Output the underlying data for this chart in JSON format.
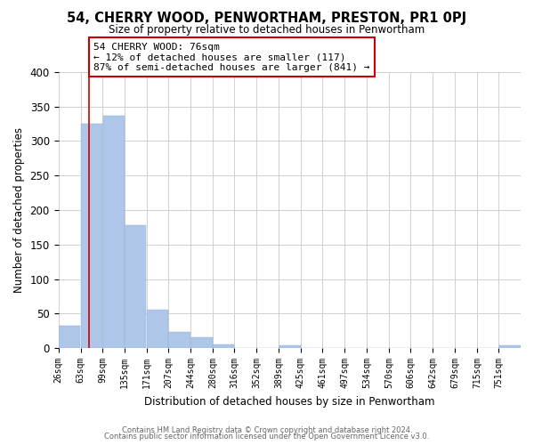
{
  "title": "54, CHERRY WOOD, PENWORTHAM, PRESTON, PR1 0PJ",
  "subtitle": "Size of property relative to detached houses in Penwortham",
  "xlabel": "Distribution of detached houses by size in Penwortham",
  "ylabel": "Number of detached properties",
  "bar_labels": [
    "26sqm",
    "63sqm",
    "99sqm",
    "135sqm",
    "171sqm",
    "207sqm",
    "244sqm",
    "280sqm",
    "316sqm",
    "352sqm",
    "389sqm",
    "425sqm",
    "461sqm",
    "497sqm",
    "534sqm",
    "570sqm",
    "606sqm",
    "642sqm",
    "679sqm",
    "715sqm",
    "751sqm"
  ],
  "bar_values": [
    33,
    325,
    337,
    178,
    56,
    24,
    16,
    6,
    0,
    0,
    4,
    0,
    0,
    0,
    0,
    0,
    0,
    0,
    0,
    0,
    4
  ],
  "bar_color": "#aec6e8",
  "property_line_x": 76,
  "bin_edges": [
    26,
    63,
    99,
    135,
    171,
    207,
    244,
    280,
    316,
    352,
    389,
    425,
    461,
    497,
    534,
    570,
    606,
    642,
    679,
    715,
    751,
    787
  ],
  "annotation_title": "54 CHERRY WOOD: 76sqm",
  "annotation_line1": "← 12% of detached houses are smaller (117)",
  "annotation_line2": "87% of semi-detached houses are larger (841) →",
  "vline_color": "#cc0000",
  "annotation_box_color": "#ffffff",
  "annotation_box_edge": "#cc0000",
  "ylim": [
    0,
    400
  ],
  "yticks": [
    0,
    50,
    100,
    150,
    200,
    250,
    300,
    350,
    400
  ],
  "footer1": "Contains HM Land Registry data © Crown copyright and database right 2024.",
  "footer2": "Contains public sector information licensed under the Open Government Licence v3.0.",
  "background_color": "#ffffff",
  "grid_color": "#d0d0d0"
}
